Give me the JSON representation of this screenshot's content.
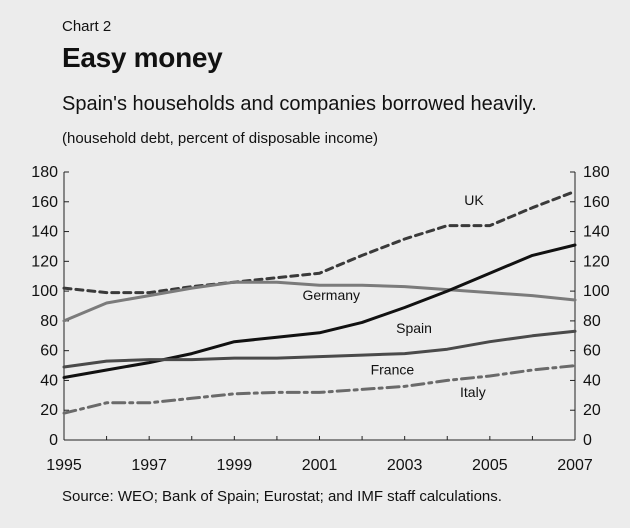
{
  "header": {
    "chart_label": "Chart 2",
    "title": "Easy money",
    "subtitle": "Spain's households and companies borrowed heavily.",
    "unit_note": "(household debt, percent of disposable income)"
  },
  "footer": {
    "source": "Source: WEO; Bank of Spain; Eurostat; and IMF staff calculations."
  },
  "chart_data": {
    "type": "line",
    "title": "Easy money",
    "subtitle": "Spain's households and companies borrowed heavily.",
    "ylabel": "(household debt, percent of disposable income)",
    "xlabel": "",
    "xlim": [
      1995,
      2007
    ],
    "ylim": [
      0,
      180
    ],
    "x_ticks": [
      1995,
      1997,
      1999,
      2001,
      2003,
      2005,
      2007
    ],
    "y_ticks": [
      0,
      20,
      40,
      60,
      80,
      100,
      120,
      140,
      160,
      180
    ],
    "dual_y_axis": true,
    "grid": false,
    "legend": "inline labels",
    "x": [
      1995,
      1996,
      1997,
      1998,
      1999,
      2000,
      2001,
      2002,
      2003,
      2004,
      2005,
      2006,
      2007
    ],
    "series": [
      {
        "name": "UK",
        "color": "#3a3a3a",
        "dash": "dashed",
        "values": [
          102,
          99,
          99,
          103,
          106,
          109,
          112,
          124,
          135,
          144,
          144,
          156,
          167
        ]
      },
      {
        "name": "Germany",
        "color": "#7b7b7b",
        "dash": "solid",
        "values": [
          80,
          92,
          97,
          102,
          106,
          106,
          104,
          104,
          103,
          101,
          99,
          97,
          94
        ]
      },
      {
        "name": "Spain",
        "color": "#111111",
        "dash": "solid",
        "values": [
          42,
          47,
          52,
          58,
          66,
          69,
          72,
          79,
          89,
          100,
          112,
          124,
          131
        ]
      },
      {
        "name": "France",
        "color": "#4a4a4a",
        "dash": "solid",
        "values": [
          49,
          53,
          54,
          54,
          55,
          55,
          56,
          57,
          58,
          61,
          66,
          70,
          73
        ]
      },
      {
        "name": "Italy",
        "color": "#6a6a6a",
        "dash": "dashdot",
        "values": [
          18,
          25,
          25,
          28,
          31,
          32,
          32,
          34,
          36,
          40,
          43,
          47,
          50
        ]
      }
    ]
  }
}
